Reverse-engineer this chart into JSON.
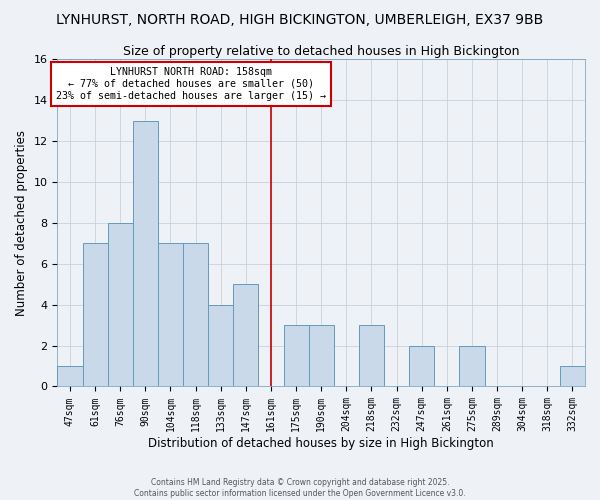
{
  "title": "LYNHURST, NORTH ROAD, HIGH BICKINGTON, UMBERLEIGH, EX37 9BB",
  "subtitle": "Size of property relative to detached houses in High Bickington",
  "xlabel": "Distribution of detached houses by size in High Bickington",
  "ylabel": "Number of detached properties",
  "bin_labels": [
    "47sqm",
    "61sqm",
    "76sqm",
    "90sqm",
    "104sqm",
    "118sqm",
    "133sqm",
    "147sqm",
    "161sqm",
    "175sqm",
    "190sqm",
    "204sqm",
    "218sqm",
    "232sqm",
    "247sqm",
    "261sqm",
    "275sqm",
    "289sqm",
    "304sqm",
    "318sqm",
    "332sqm"
  ],
  "bar_heights": [
    1,
    7,
    8,
    13,
    7,
    7,
    4,
    5,
    0,
    3,
    3,
    0,
    3,
    0,
    2,
    0,
    2,
    0,
    0,
    0,
    1
  ],
  "bar_color": "#c9d9e9",
  "bar_edge_color": "#6699bb",
  "ylim": [
    0,
    16
  ],
  "yticks": [
    0,
    2,
    4,
    6,
    8,
    10,
    12,
    14,
    16
  ],
  "vline_x": 8,
  "vline_color": "#cc0000",
  "annotation_title": "LYNHURST NORTH ROAD: 158sqm",
  "annotation_line1": "← 77% of detached houses are smaller (50)",
  "annotation_line2": "23% of semi-detached houses are larger (15) →",
  "annotation_box_edge": "#cc0000",
  "footer1": "Contains HM Land Registry data © Crown copyright and database right 2025.",
  "footer2": "Contains public sector information licensed under the Open Government Licence v3.0.",
  "bg_color": "#eef2f7",
  "grid_color": "#c0ccd8",
  "title_fontsize": 10,
  "subtitle_fontsize": 9
}
